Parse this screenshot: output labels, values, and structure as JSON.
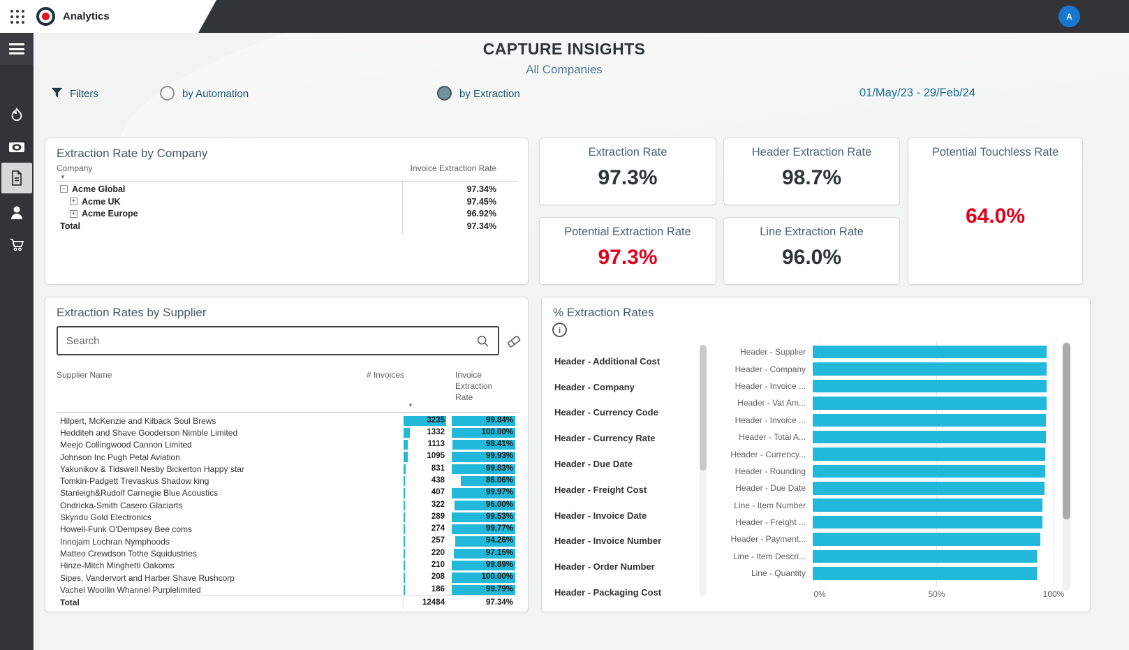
{
  "topbar": {
    "app_name": "Analytics",
    "avatar_initial": "A"
  },
  "sidebar": {
    "items": [
      "menu-icon",
      "flame-icon",
      "cash-icon",
      "document-icon",
      "person-icon",
      "cart-icon"
    ],
    "selected": "document-icon"
  },
  "header": {
    "title": "CAPTURE INSIGHTS",
    "subtitle": "All Companies"
  },
  "filters": {
    "label": "Filters",
    "options": [
      {
        "label": "by Automation",
        "selected": false
      },
      {
        "label": "by Extraction",
        "selected": true
      }
    ],
    "date_range": "01/May/23 - 29/Feb/24"
  },
  "company_card": {
    "title": "Extraction Rate by Company",
    "columns": {
      "company": "Company",
      "rate": "Invoice Extraction Rate"
    },
    "rows": [
      {
        "name": "Acme Global",
        "rate": "97.34%",
        "level": 0,
        "expander": "collapse"
      },
      {
        "name": "Acme UK",
        "rate": "97.45%",
        "level": 1,
        "expander": "expand"
      },
      {
        "name": "Acme Europe",
        "rate": "96.92%",
        "level": 1,
        "expander": "expand"
      },
      {
        "name": "Total",
        "rate": "97.34%",
        "level": 0,
        "expander": "none"
      }
    ]
  },
  "kpis": {
    "extraction": {
      "title": "Extraction Rate",
      "value": "97.3%",
      "alert": false
    },
    "header_extraction": {
      "title": "Header Extraction Rate",
      "value": "98.7%",
      "alert": false
    },
    "potential_extraction": {
      "title": "Potential Extraction Rate",
      "value": "97.3%",
      "alert": true
    },
    "line_extraction": {
      "title": "Line Extraction Rate",
      "value": "96.0%",
      "alert": false
    },
    "potential_touchless": {
      "title": "Potential Touchless Rate",
      "value": "64.0%",
      "alert": true
    }
  },
  "supplier_card": {
    "title": "Extraction Rates by Supplier",
    "search_placeholder": "Search",
    "columns": {
      "name": "Supplier Name",
      "invoices": "# Invoices",
      "rate": "Invoice Extraction Rate"
    },
    "rows": [
      {
        "name": "Hilpert, McKenzie and Kilback Soul Brews",
        "invoices": 3235,
        "rate": 99.84
      },
      {
        "name": "Hedditeh and Shave Gooderson Nimble Limited",
        "invoices": 1332,
        "rate": 100.0
      },
      {
        "name": "Meejo Collingwood Cannon Limited",
        "invoices": 1113,
        "rate": 98.41
      },
      {
        "name": "Johnson Inc Pugh Petal Aviation",
        "invoices": 1095,
        "rate": 99.93
      },
      {
        "name": "Yakunikov & Tidswell Nesby Bickerton Happy star",
        "invoices": 831,
        "rate": 99.83
      },
      {
        "name": "Tomkin-Padgett Trevaskus Shadow king",
        "invoices": 438,
        "rate": 86.06
      },
      {
        "name": "Stanleigh&Rudolf Carnegie Blue Acoustics",
        "invoices": 407,
        "rate": 99.97
      },
      {
        "name": "Ondricka-Smith Casero Glaciarts",
        "invoices": 322,
        "rate": 96.0
      },
      {
        "name": "Skyndu Gold Electronics",
        "invoices": 289,
        "rate": 99.53
      },
      {
        "name": "Howell-Funk O'Dempsey Bee coms",
        "invoices": 274,
        "rate": 99.77
      },
      {
        "name": "Innojam Lochran Nymphoods",
        "invoices": 257,
        "rate": 94.26
      },
      {
        "name": "Matteo Crewdson Tothe Squidustries",
        "invoices": 220,
        "rate": 97.15
      },
      {
        "name": "Hinze-Mitch Minghetti Oakoms",
        "invoices": 210,
        "rate": 99.89
      },
      {
        "name": "Sipes, Vandervort and Harber Shave Rushcorp",
        "invoices": 208,
        "rate": 100.0
      },
      {
        "name": "Vachel Woollin Whannel Purplelimited",
        "invoices": 186,
        "rate": 99.79
      }
    ],
    "total": {
      "name": "Total",
      "invoices": 12484,
      "rate": 97.34
    }
  },
  "rates_card": {
    "title": "% Extraction Rates",
    "fields": [
      "Header - Additional Cost",
      "Header - Company",
      "Header - Currency Code",
      "Header - Currency Rate",
      "Header - Due Date",
      "Header - Freight Cost",
      "Header - Invoice Date",
      "Header - Invoice Number",
      "Header - Order Number",
      "Header - Packaging Cost"
    ]
  },
  "chart_data": {
    "type": "bar",
    "orientation": "horizontal",
    "title": "% Extraction Rates",
    "categories": [
      "Header - Supplier",
      "Header - Company",
      "Header - Invoice ...",
      "Header - Vat Am...",
      "Header - Invoice ...",
      "Header - Total A...",
      "Header - Currency...",
      "Header - Rounding",
      "Header - Due Date",
      "Line - Item Number",
      "Header - Freight ...",
      "Header - Payment...",
      "Line - Item Descri...",
      "Line - Quantity"
    ],
    "values": [
      100,
      100,
      100,
      99.9,
      99.8,
      99.7,
      99.5,
      99.3,
      99.0,
      98.3,
      98.1,
      97.2,
      95.8,
      95.9
    ],
    "x_ticks": [
      "0%",
      "50%",
      "100%"
    ],
    "xlim": [
      0,
      100
    ],
    "grid": true,
    "legend": false,
    "bar_color": "#22b8da"
  },
  "colors": {
    "accent_cyan": "#22b8da",
    "alert_red": "#e2001b",
    "value_dark": "#2f3437"
  }
}
